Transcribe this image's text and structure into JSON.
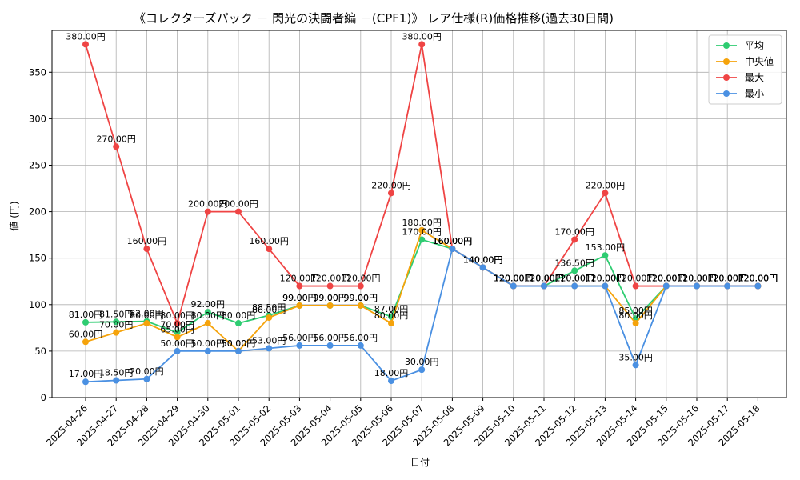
{
  "chart_data": {
    "type": "line",
    "title": "《コレクターズパック － 閃光の決闘者編 －(CPF1)》 レア仕様(R)価格推移(過去30日間)",
    "xlabel": "日付",
    "ylabel": "値 (円)",
    "ylim": [
      0,
      395
    ],
    "yticks": [
      0,
      50,
      100,
      150,
      200,
      250,
      300,
      350
    ],
    "grid": true,
    "legend_position": "top-right",
    "categories": [
      "2025-04-26",
      "2025-04-27",
      "2025-04-28",
      "2025-04-29",
      "2025-04-30",
      "2025-05-01",
      "2025-05-02",
      "2025-05-03",
      "2025-05-04",
      "2025-05-05",
      "2025-05-06",
      "2025-05-07",
      "2025-05-08",
      "2025-05-09",
      "2025-05-10",
      "2025-05-11",
      "2025-05-12",
      "2025-05-13",
      "2025-05-14",
      "2025-05-15",
      "2025-05-16",
      "2025-05-17",
      "2025-05-18"
    ],
    "series": [
      {
        "name": "平均",
        "color": "#2ecc71",
        "values": [
          81.0,
          81.5,
          82.0,
          70.0,
          92.0,
          80.0,
          88.5,
          99.0,
          99.0,
          99.0,
          87.0,
          170.0,
          160.0,
          140.0,
          120.0,
          120.0,
          136.5,
          153.0,
          85.0,
          120.0,
          120.0,
          120.0,
          120.0
        ]
      },
      {
        "name": "中央値",
        "color": "#f5a30b",
        "values": [
          60.0,
          70.0,
          80.0,
          65.0,
          80.0,
          50.0,
          86.0,
          99.0,
          99.0,
          99.0,
          80.0,
          180.0,
          160.0,
          140.0,
          120.0,
          120.0,
          120.0,
          120.0,
          80.0,
          120.0,
          120.0,
          120.0,
          120.0
        ]
      },
      {
        "name": "最大",
        "color": "#ef4444",
        "values": [
          380.0,
          270.0,
          160.0,
          80.0,
          200.0,
          200.0,
          160.0,
          120.0,
          120.0,
          120.0,
          220.0,
          380.0,
          160.0,
          140.0,
          120.0,
          120.0,
          170.0,
          220.0,
          120.0,
          120.0,
          120.0,
          120.0,
          120.0
        ]
      },
      {
        "name": "最小",
        "color": "#4a90e2",
        "values": [
          17.0,
          18.5,
          20.0,
          50.0,
          50.0,
          50.0,
          53.0,
          56.0,
          56.0,
          56.0,
          18.0,
          30.0,
          160.0,
          140.0,
          120.0,
          120.0,
          120.0,
          120.0,
          35.0,
          120.0,
          120.0,
          120.0,
          120.0
        ]
      }
    ],
    "label_suffix": "円"
  }
}
